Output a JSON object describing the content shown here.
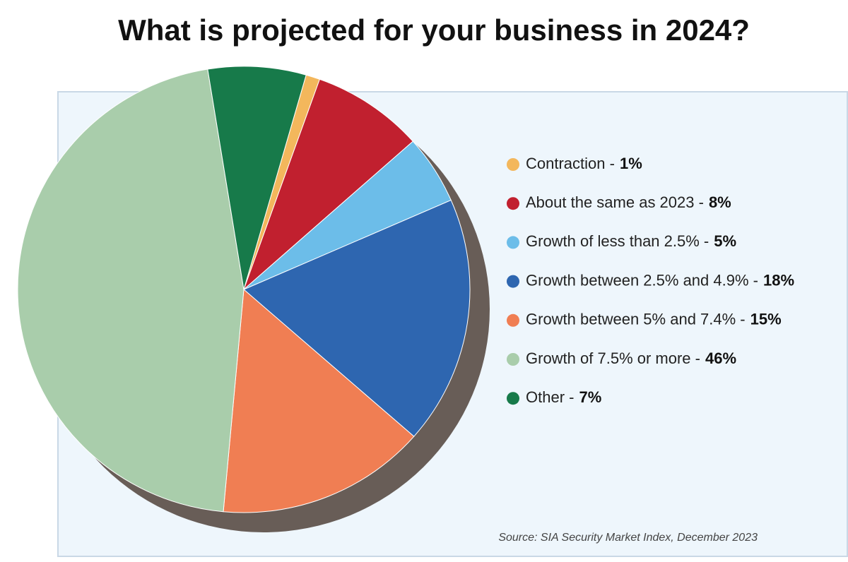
{
  "chart_data": {
    "type": "pie",
    "title": "What is projected for your business in 2024?",
    "categories": [
      "Contraction -",
      "About the same as 2023 -",
      "Growth of less than 2.5% -",
      "Growth between 2.5% and 4.9% -",
      "Growth between 5% and 7.4% -",
      "Growth of 7.5% or more -",
      "Other -"
    ],
    "values": [
      1,
      8,
      5,
      18,
      15,
      46,
      7
    ],
    "value_labels": [
      "1%",
      "8%",
      "5%",
      "18%",
      "15%",
      "46%",
      "7%"
    ],
    "colors": [
      "#f3b75c",
      "#c1202f",
      "#6cbde9",
      "#2e66b0",
      "#f07e53",
      "#a9cdab",
      "#177a4a"
    ],
    "source": "Source: SIA Security Market Index, December 2023"
  }
}
